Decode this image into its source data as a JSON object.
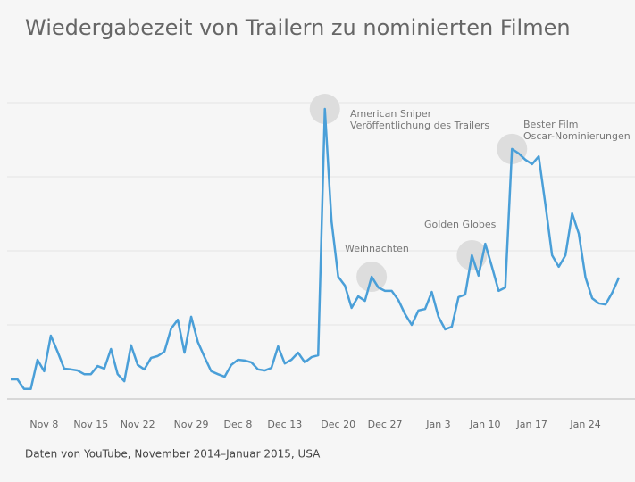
{
  "chart_data": {
    "type": "line",
    "title": "Wiedergabezeit von Trailern zu nominierten Filmen",
    "source": "Daten von YouTube, November 2014–Januar 2015, USA",
    "categories": [
      null,
      null,
      null,
      null,
      null,
      "Nov 8",
      null,
      null,
      null,
      null,
      null,
      null,
      "Nov 15",
      null,
      null,
      null,
      null,
      null,
      null,
      "Nov 22",
      null,
      null,
      null,
      null,
      null,
      null,
      null,
      "Nov 29",
      null,
      null,
      null,
      null,
      null,
      null,
      "Dec 8",
      null,
      null,
      null,
      null,
      null,
      null,
      "Dec 13",
      null,
      null,
      null,
      null,
      null,
      null,
      null,
      "Dec 20",
      null,
      null,
      null,
      null,
      null,
      null,
      "Dec 27",
      null,
      null,
      null,
      null,
      null,
      null,
      null,
      "Jan 3",
      null,
      null,
      null,
      null,
      null,
      null,
      "Jan 10",
      null,
      null,
      null,
      null,
      null,
      null,
      "Jan 17",
      null,
      null,
      null,
      null,
      null,
      null,
      null,
      "Jan 24",
      null,
      null,
      null,
      null,
      null
    ],
    "series": [
      {
        "color": "#4a9fd8",
        "values": [
          5.3,
          5.3,
          2.7,
          2.7,
          10.6,
          7.5,
          17.1,
          12.8,
          8.2,
          8.0,
          7.7,
          6.7,
          6.7,
          8.9,
          8.2,
          13.5,
          6.7,
          4.8,
          14.5,
          9.2,
          8.0,
          11.1,
          11.6,
          12.8,
          19.0,
          21.4,
          12.5,
          22.2,
          15.4,
          11.3,
          7.5,
          6.7,
          6.0,
          9.2,
          10.6,
          10.4,
          9.9,
          8.0,
          7.7,
          8.4,
          14.2,
          9.6,
          10.6,
          12.5,
          9.9,
          11.3,
          11.8,
          78.3,
          48.0,
          33.0,
          30.6,
          24.6,
          27.7,
          26.5,
          33.0,
          30.1,
          29.2,
          29.2,
          26.7,
          22.9,
          20.0,
          23.9,
          24.3,
          28.9,
          22.2,
          18.8,
          19.5,
          27.5,
          28.2,
          38.8,
          33.3,
          41.9,
          35.7,
          29.2,
          30.1,
          67.5,
          66.3,
          64.6,
          63.4,
          65.5,
          52.5,
          38.8,
          35.7,
          38.8,
          50.1,
          44.6,
          32.8,
          27.2,
          25.8,
          25.5,
          28.7,
          32.8
        ]
      }
    ],
    "annotations": [
      {
        "lines": [
          "American Sniper",
          "Veröffentlichung des Trailers"
        ]
      },
      {
        "lines": [
          "Weihnachten"
        ]
      },
      {
        "lines": [
          "Golden Globes"
        ]
      },
      {
        "lines": [
          "Bester Film",
          "Oscar-Nominierungen"
        ]
      }
    ],
    "ylim": [
      0,
      80
    ],
    "yticks": [
      0,
      20,
      40,
      60,
      80
    ],
    "grid": true
  }
}
